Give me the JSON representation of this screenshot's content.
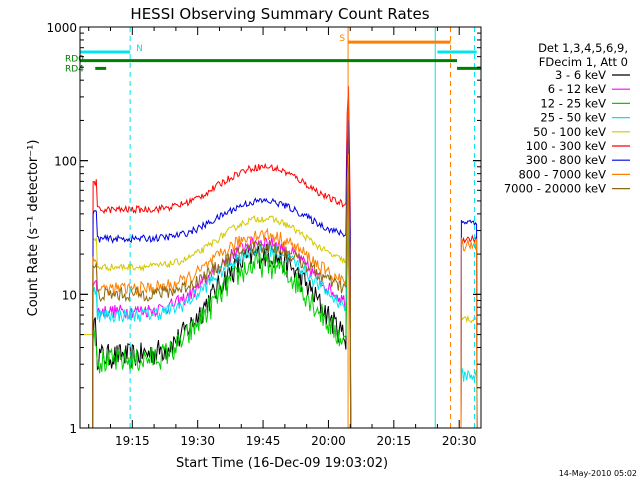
{
  "chart_data": {
    "type": "line",
    "title": "HESSI Observing Summary Count Rates",
    "xlabel": "Start Time (16-Dec-09 19:03:02)",
    "ylabel": "Count Rate (s⁻¹ detector⁻¹)",
    "y_scale": "log",
    "ylim": [
      1,
      1000
    ],
    "y_ticks": [
      1,
      10,
      100,
      1000
    ],
    "y_tick_labels": [
      "1",
      "10",
      "100",
      "1000"
    ],
    "xlim_minutes": [
      0,
      92
    ],
    "x_ticks_minutes": [
      12,
      27,
      42,
      57,
      72,
      87
    ],
    "x_tick_labels": [
      "19:15",
      "19:30",
      "19:45",
      "20:00",
      "20:15",
      "20:30"
    ],
    "legend_header": [
      "Det 1,3,4,5,6,9,",
      "FDecim 1, Att 0"
    ],
    "legend_position": "right",
    "footer_date": "14-May-2010 05:02",
    "series": [
      {
        "name": "3 - 6 keV",
        "color": "#000000",
        "base": 3.5,
        "peak": 20,
        "pre": 0,
        "post": null
      },
      {
        "name": "6 - 12 keV",
        "color": "#ff00ff",
        "base": 7.5,
        "peak": 25,
        "pre": 0,
        "post": null
      },
      {
        "name": "12 - 25 keV",
        "color": "#00d000",
        "base": 3.2,
        "peak": 17,
        "pre": 0,
        "post": null
      },
      {
        "name": "25 - 50 keV",
        "color": "#00e5ee",
        "base": 7,
        "peak": 22,
        "pre": 0,
        "post": 2.5
      },
      {
        "name": "50 - 100 keV",
        "color": "#d4c800",
        "base": 16,
        "peak": 37,
        "pre": 5,
        "post": 6.5
      },
      {
        "name": "100 - 300 keV",
        "color": "#ff0000",
        "base": 43,
        "peak": 90,
        "pre": 0,
        "post": 26
      },
      {
        "name": "300 - 800 keV",
        "color": "#0000e0",
        "base": 26,
        "peak": 50,
        "pre": 0,
        "post": 35
      },
      {
        "name": "800 - 7000 keV",
        "color": "#ff8000",
        "base": 11,
        "peak": 28,
        "pre": 0,
        "post": 24
      },
      {
        "name": "7000 - 20000 keV",
        "color": "#8b6914",
        "base": 10,
        "peak": 23,
        "pre": 0,
        "post": null
      }
    ],
    "flag_bars": [
      {
        "label": "N",
        "color": "#00e5ee",
        "level": 650,
        "segments": [
          [
            0,
            11.5
          ],
          [
            82,
            91
          ]
        ]
      },
      {
        "label": "S",
        "color": "#ff8000",
        "level": 770,
        "segments": [
          [
            61.5,
            85
          ]
        ]
      },
      {
        "label": "RD0",
        "color": "#008000",
        "level": 560,
        "segments": [
          [
            0,
            86.5
          ]
        ]
      },
      {
        "label": "RD4",
        "color": "#008000",
        "level": 490,
        "segments": [
          [
            3.5,
            6
          ],
          [
            86.5,
            92
          ]
        ]
      }
    ],
    "vertical_markers": [
      {
        "t": 11.5,
        "color": "#00e5ee",
        "style": "dashed"
      },
      {
        "t": 61.5,
        "color": "#ff8000",
        "style": "solid"
      },
      {
        "t": 81.5,
        "color": "#00e5ee",
        "style": "solid"
      },
      {
        "t": 85,
        "color": "#ff8000",
        "style": "dashed"
      },
      {
        "t": 90.5,
        "color": "#00e5ee",
        "style": "dashed"
      }
    ]
  }
}
